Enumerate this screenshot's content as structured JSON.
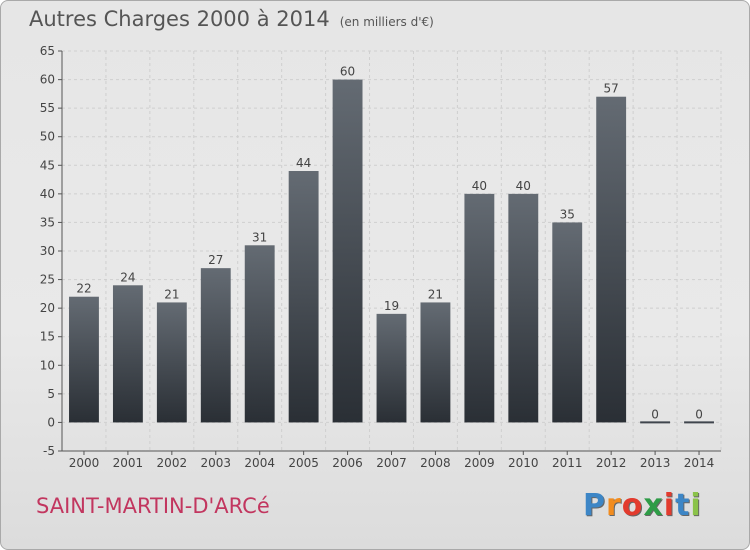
{
  "header": {
    "title": "Autres Charges 2000 à 2014",
    "unit": "(en milliers d'€)"
  },
  "commune": "SAINT-MARTIN-D'ARCé",
  "logo": {
    "letters": [
      "P",
      "r",
      "o",
      "x",
      "i",
      "t",
      "i"
    ],
    "colors": [
      "#3d86c6",
      "#f28c1e",
      "#e23b2e",
      "#2e9c47",
      "#e23b2e",
      "#3d86c6",
      "#8bc34a"
    ]
  },
  "chart_data": {
    "type": "bar",
    "title": "Autres Charges 2000 à 2014",
    "subtitle": "(en milliers d'€)",
    "categories": [
      "2000",
      "2001",
      "2002",
      "2003",
      "2004",
      "2005",
      "2006",
      "2007",
      "2008",
      "2009",
      "2010",
      "2011",
      "2012",
      "2013",
      "2014"
    ],
    "values": [
      22,
      24,
      21,
      27,
      31,
      44,
      60,
      19,
      21,
      40,
      40,
      35,
      57,
      0,
      0
    ],
    "ylim": [
      -5,
      65
    ],
    "yticks": [
      -5,
      0,
      5,
      10,
      15,
      20,
      25,
      30,
      35,
      40,
      45,
      50,
      55,
      60,
      65
    ],
    "grid": true,
    "bar_color": "#3f454d"
  }
}
